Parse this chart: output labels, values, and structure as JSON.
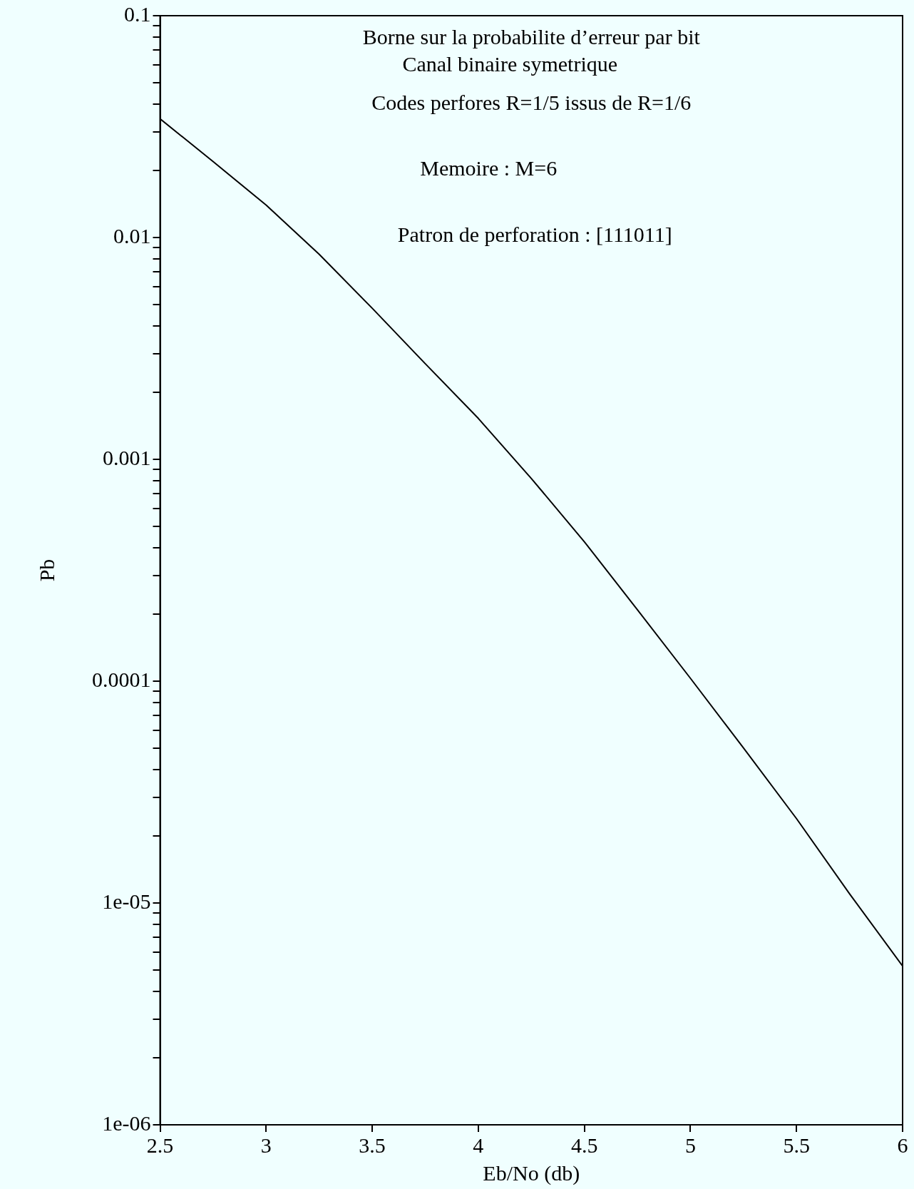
{
  "chart_data": {
    "type": "line",
    "title": "Borne sur la probabilite d’erreur par bit",
    "subtitle": "Canal binaire symetrique",
    "annotations": [
      "Codes perfores R=1/5 issus de R=1/6",
      "Memoire : M=6",
      "Patron de perforation : [111011]"
    ],
    "xlabel": "Eb/No (db)",
    "ylabel": "Pb",
    "log": "y",
    "grid": false,
    "legend": false,
    "marker": "none",
    "line_style": "solid",
    "x": [
      2.5,
      2.75,
      3,
      3.25,
      3.5,
      3.75,
      4,
      4.25,
      4.5,
      4.75,
      5,
      5.25,
      5.5,
      5.75,
      6
    ],
    "series": [
      {
        "color": "#000000",
        "values": [
          0.0343,
          0.022,
          0.014,
          0.0084,
          0.0048,
          0.0027,
          0.00153,
          0.00082,
          0.000425,
          0.00021,
          0.000103,
          5e-05,
          2.4e-05,
          1.1e-05,
          5.2e-06
        ]
      }
    ],
    "xlim": [
      2.5,
      6
    ],
    "xticks": [
      2.5,
      3,
      3.5,
      4,
      4.5,
      5,
      5.5,
      6
    ],
    "ylim": [
      1e-06,
      0.1
    ],
    "yticks": [
      {
        "value": 1e-06,
        "label": "1e-06"
      },
      {
        "value": 2e-06,
        "label": null
      },
      {
        "value": 3e-06,
        "label": null
      },
      {
        "value": 4e-06,
        "label": null
      },
      {
        "value": 5e-06,
        "label": null
      },
      {
        "value": 6e-06,
        "label": null
      },
      {
        "value": 7e-06,
        "label": null
      },
      {
        "value": 8e-06,
        "label": null
      },
      {
        "value": 9e-06,
        "label": null
      },
      {
        "value": 1e-05,
        "label": "1e-05"
      },
      {
        "value": 2e-05,
        "label": null
      },
      {
        "value": 3e-05,
        "label": null
      },
      {
        "value": 4e-05,
        "label": null
      },
      {
        "value": 5e-05,
        "label": null
      },
      {
        "value": 6e-05,
        "label": null
      },
      {
        "value": 7e-05,
        "label": null
      },
      {
        "value": 8e-05,
        "label": null
      },
      {
        "value": 9e-05,
        "label": null
      },
      {
        "value": 0.0001,
        "label": "0.0001"
      },
      {
        "value": 0.0002,
        "label": null
      },
      {
        "value": 0.0003,
        "label": null
      },
      {
        "value": 0.0004,
        "label": null
      },
      {
        "value": 0.0005,
        "label": null
      },
      {
        "value": 0.0006,
        "label": null
      },
      {
        "value": 0.0007,
        "label": null
      },
      {
        "value": 0.0008,
        "label": null
      },
      {
        "value": 0.0009,
        "label": null
      },
      {
        "value": 0.001,
        "label": "0.001"
      },
      {
        "value": 0.002,
        "label": null
      },
      {
        "value": 0.003,
        "label": null
      },
      {
        "value": 0.004,
        "label": null
      },
      {
        "value": 0.005,
        "label": null
      },
      {
        "value": 0.006,
        "label": null
      },
      {
        "value": 0.007,
        "label": null
      },
      {
        "value": 0.008,
        "label": null
      },
      {
        "value": 0.009,
        "label": null
      },
      {
        "value": 0.01,
        "label": "0.01"
      },
      {
        "value": 0.02,
        "label": null
      },
      {
        "value": 0.03,
        "label": null
      },
      {
        "value": 0.04,
        "label": null
      },
      {
        "value": 0.05,
        "label": null
      },
      {
        "value": 0.06,
        "label": null
      },
      {
        "value": 0.07,
        "label": null
      },
      {
        "value": 0.08,
        "label": null
      },
      {
        "value": 0.09,
        "label": null
      },
      {
        "value": 0.1,
        "label": "0.1"
      }
    ]
  }
}
